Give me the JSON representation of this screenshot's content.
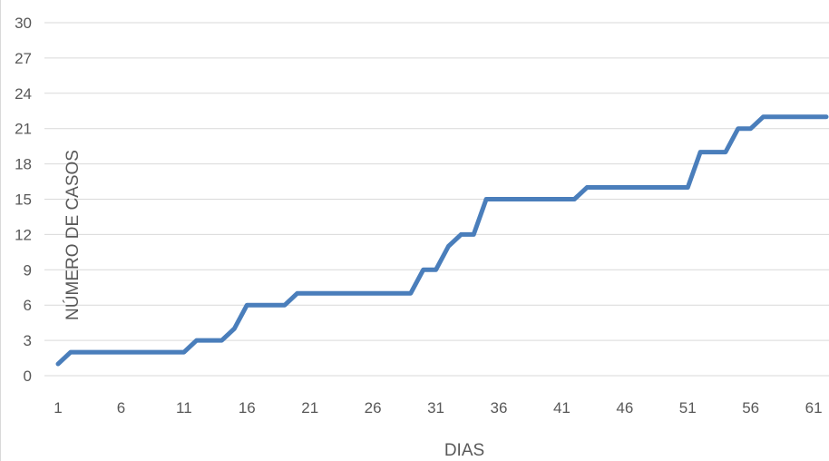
{
  "chart_data": {
    "type": "line",
    "title": "",
    "xlabel": "DIAS",
    "ylabel": "NÚMERO DE CASOS",
    "x": [
      1,
      2,
      3,
      4,
      5,
      6,
      7,
      8,
      9,
      10,
      11,
      12,
      13,
      14,
      15,
      16,
      17,
      18,
      19,
      20,
      21,
      22,
      23,
      24,
      25,
      26,
      27,
      28,
      29,
      30,
      31,
      32,
      33,
      34,
      35,
      36,
      37,
      38,
      39,
      40,
      41,
      42,
      43,
      44,
      45,
      46,
      47,
      48,
      49,
      50,
      51,
      52,
      53,
      54,
      55,
      56,
      57,
      58,
      59,
      60,
      61,
      62
    ],
    "series": [
      {
        "values": [
          1,
          2,
          2,
          2,
          2,
          2,
          2,
          2,
          2,
          2,
          2,
          3,
          3,
          3,
          4,
          6,
          6,
          6,
          6,
          7,
          7,
          7,
          7,
          7,
          7,
          7,
          7,
          7,
          7,
          9,
          9,
          11,
          12,
          12,
          15,
          15,
          15,
          15,
          15,
          15,
          15,
          15,
          16,
          16,
          16,
          16,
          16,
          16,
          16,
          16,
          16,
          19,
          19,
          19,
          21,
          21,
          22,
          22,
          22,
          22,
          22,
          22
        ]
      }
    ],
    "x_tick_labels": [
      "1",
      "6",
      "11",
      "16",
      "21",
      "26",
      "31",
      "36",
      "41",
      "46",
      "51",
      "56",
      "61"
    ],
    "x_tick_values": [
      1,
      6,
      11,
      16,
      21,
      26,
      31,
      36,
      41,
      46,
      51,
      56,
      61
    ],
    "y_ticks": [
      0,
      3,
      6,
      9,
      12,
      15,
      18,
      21,
      24,
      27,
      30
    ],
    "xlim": [
      1,
      62
    ],
    "ylim": [
      0,
      30
    ],
    "grid": true,
    "legend": "none",
    "colors": {
      "series": "#4a7ebb",
      "grid": "#d9d9d9",
      "text": "#595959"
    }
  }
}
